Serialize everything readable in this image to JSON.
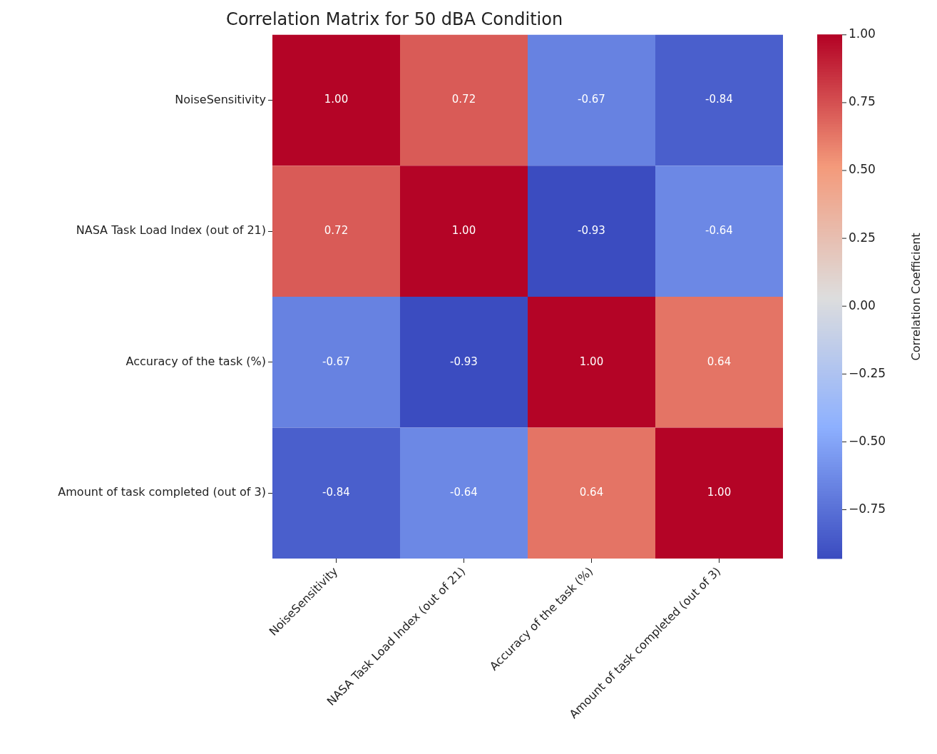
{
  "chart_data": {
    "type": "heatmap",
    "title": "Correlation Matrix for 50 dBA Condition",
    "categories": [
      "NoiseSensitivity",
      "NASA Task Load Index (out of 21)",
      "Accuracy of the task (%)",
      "Amount of task completed (out of 3)"
    ],
    "y_categories": [
      "NoiseSensitivity",
      "NASA Task Load Index (out of 21)",
      "Accuracy of the task (%)",
      "Amount of task completed (out of 3)"
    ],
    "cells": [
      [
        1.0,
        0.72,
        -0.67,
        -0.84
      ],
      [
        0.72,
        1.0,
        -0.93,
        -0.64
      ],
      [
        -0.67,
        -0.93,
        1.0,
        0.64
      ],
      [
        -0.84,
        -0.64,
        0.64,
        1.0
      ]
    ],
    "cell_labels": [
      [
        "1.00",
        "0.72",
        "-0.67",
        "-0.84"
      ],
      [
        "0.72",
        "1.00",
        "-0.93",
        "-0.64"
      ],
      [
        "-0.67",
        "-0.93",
        "1.00",
        "0.64"
      ],
      [
        "-0.84",
        "-0.64",
        "0.64",
        "1.00"
      ]
    ],
    "clim": [
      -0.93,
      1.0
    ],
    "cticks": [
      {
        "value": -0.75,
        "label": "−0.75"
      },
      {
        "value": -0.5,
        "label": "−0.50"
      },
      {
        "value": -0.25,
        "label": "−0.25"
      },
      {
        "value": 0,
        "label": "0.00"
      },
      {
        "value": 0.25,
        "label": "0.25"
      },
      {
        "value": 0.5,
        "label": "0.50"
      },
      {
        "value": 0.75,
        "label": "0.75"
      },
      {
        "value": 1,
        "label": "1.00"
      }
    ],
    "clabel": "Correlation Coefficient",
    "data_labels": true
  }
}
